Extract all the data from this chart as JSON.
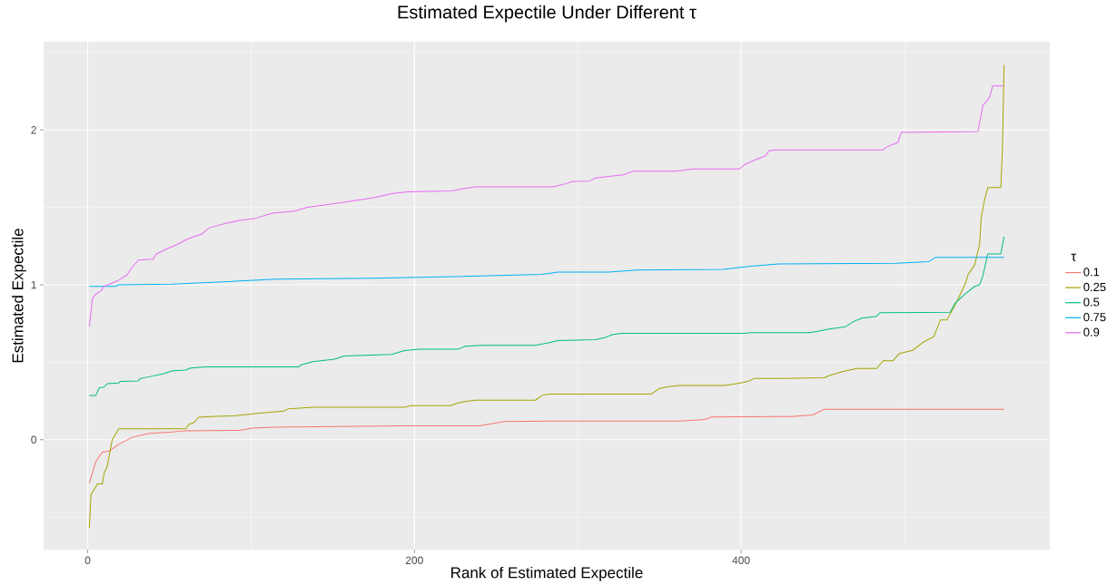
{
  "chart_data": {
    "type": "line",
    "title": "Estimated Expectile Under Different τ",
    "xlabel": "Rank of Estimated Expectile",
    "ylabel": "Estimated Expectile",
    "legend_title": "τ",
    "xlim": [
      -27,
      589
    ],
    "ylim": [
      -0.71,
      2.57
    ],
    "xticks": [
      0,
      200,
      400
    ],
    "yticks": [
      0,
      1,
      2
    ],
    "grid": true,
    "legend": "right",
    "line_style": "solid",
    "marker": "none",
    "series": [
      {
        "name": "0.1",
        "color": "#f8766d",
        "x": [
          1,
          5,
          9,
          13,
          19,
          27,
          37,
          52,
          60,
          93,
          101,
          114,
          192,
          223,
          240,
          255,
          286,
          362,
          378,
          382,
          421,
          431,
          444,
          451,
          561
        ],
        "values": [
          -0.28,
          -0.14,
          -0.08,
          -0.075,
          -0.03,
          0.014,
          0.04,
          0.05,
          0.058,
          0.06,
          0.075,
          0.08,
          0.09,
          0.09,
          0.09,
          0.117,
          0.12,
          0.12,
          0.13,
          0.147,
          0.15,
          0.15,
          0.16,
          0.197,
          0.197
        ]
      },
      {
        "name": "0.25",
        "color": "#a3a500",
        "x": [
          1,
          2,
          6,
          9,
          10,
          12,
          15,
          19,
          60,
          62,
          65,
          68,
          75,
          91,
          104,
          120,
          123,
          138,
          194,
          198,
          222,
          226,
          230,
          237,
          274,
          278,
          282,
          345,
          350,
          354,
          362,
          390,
          399,
          405,
          408,
          425,
          451,
          454,
          462,
          471,
          483,
          487,
          493,
          497,
          505,
          512,
          518,
          522,
          526,
          531,
          537,
          539,
          543,
          546,
          547,
          549,
          551,
          559,
          560,
          561
        ],
        "values": [
          -0.57,
          -0.355,
          -0.285,
          -0.285,
          -0.22,
          -0.17,
          0.0,
          0.07,
          0.07,
          0.1,
          0.11,
          0.145,
          0.15,
          0.155,
          0.17,
          0.185,
          0.2,
          0.21,
          0.21,
          0.22,
          0.22,
          0.235,
          0.245,
          0.255,
          0.255,
          0.285,
          0.295,
          0.295,
          0.33,
          0.34,
          0.35,
          0.35,
          0.365,
          0.38,
          0.395,
          0.395,
          0.4,
          0.415,
          0.44,
          0.46,
          0.46,
          0.51,
          0.51,
          0.557,
          0.577,
          0.633,
          0.666,
          0.774,
          0.774,
          0.87,
          1.0,
          1.067,
          1.13,
          1.26,
          1.436,
          1.545,
          1.628,
          1.628,
          1.88,
          2.42
        ]
      },
      {
        "name": "0.5",
        "color": "#00bf7d",
        "x": [
          1,
          5,
          7,
          10,
          12,
          19,
          20,
          31,
          32,
          37,
          46,
          52,
          60,
          63,
          72,
          129,
          131,
          138,
          151,
          157,
          186,
          194,
          203,
          227,
          231,
          241,
          274,
          282,
          288,
          311,
          317,
          321,
          327,
          402,
          406,
          442,
          447,
          454,
          464,
          469,
          474,
          483,
          485,
          528,
          531,
          537,
          543,
          546,
          548,
          551,
          559,
          561
        ],
        "values": [
          0.285,
          0.285,
          0.334,
          0.34,
          0.362,
          0.366,
          0.377,
          0.38,
          0.394,
          0.405,
          0.425,
          0.445,
          0.45,
          0.463,
          0.47,
          0.47,
          0.485,
          0.504,
          0.52,
          0.54,
          0.551,
          0.575,
          0.584,
          0.585,
          0.603,
          0.609,
          0.609,
          0.625,
          0.64,
          0.646,
          0.66,
          0.678,
          0.687,
          0.687,
          0.691,
          0.691,
          0.7,
          0.715,
          0.73,
          0.764,
          0.785,
          0.797,
          0.82,
          0.823,
          0.883,
          0.94,
          0.99,
          1.0,
          1.057,
          1.2,
          1.2,
          1.31
        ]
      },
      {
        "name": "0.75",
        "color": "#00b0f6",
        "x": [
          1,
          17,
          19,
          52,
          83,
          116,
          175,
          203,
          278,
          288,
          319,
          336,
          389,
          406,
          423,
          495,
          515,
          519,
          561
        ],
        "values": [
          0.99,
          0.99,
          1.0,
          1.005,
          1.02,
          1.037,
          1.042,
          1.048,
          1.067,
          1.082,
          1.082,
          1.095,
          1.1,
          1.12,
          1.135,
          1.14,
          1.15,
          1.177,
          1.177
        ]
      },
      {
        "name": "0.9",
        "color": "#e76bf3",
        "x": [
          1,
          3,
          5,
          8,
          10,
          19,
          24,
          27,
          31,
          40,
          42,
          48,
          56,
          61,
          70,
          74,
          85,
          93,
          103,
          113,
          126,
          134,
          155,
          175,
          186,
          196,
          223,
          229,
          237,
          285,
          293,
          297,
          307,
          311,
          319,
          328,
          334,
          360,
          371,
          399,
          402,
          407,
          415,
          417,
          421,
          487,
          489,
          496,
          498,
          545,
          548,
          552,
          554,
          561
        ],
        "values": [
          0.73,
          0.915,
          0.94,
          0.96,
          0.99,
          1.03,
          1.063,
          1.11,
          1.16,
          1.165,
          1.198,
          1.23,
          1.267,
          1.296,
          1.328,
          1.367,
          1.398,
          1.416,
          1.43,
          1.463,
          1.475,
          1.499,
          1.53,
          1.563,
          1.589,
          1.6,
          1.607,
          1.62,
          1.633,
          1.633,
          1.654,
          1.668,
          1.67,
          1.69,
          1.7,
          1.71,
          1.734,
          1.734,
          1.748,
          1.748,
          1.775,
          1.8,
          1.833,
          1.865,
          1.872,
          1.872,
          1.89,
          1.92,
          1.984,
          1.99,
          2.158,
          2.208,
          2.285,
          2.285
        ]
      }
    ]
  }
}
